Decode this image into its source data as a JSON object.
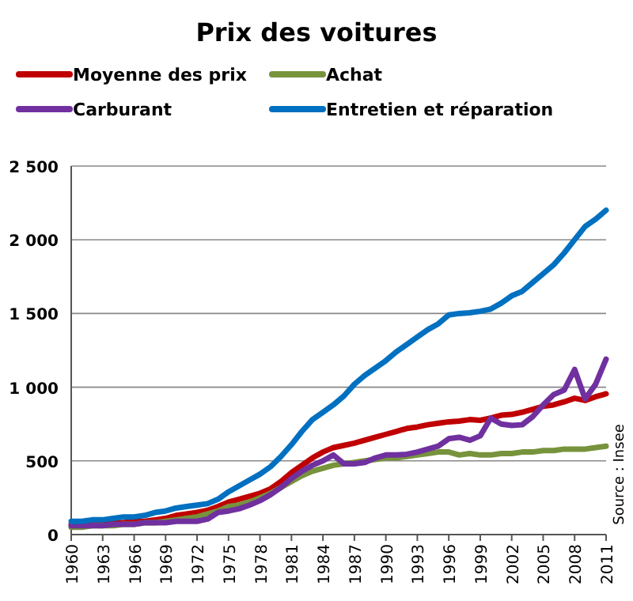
{
  "chart_data": {
    "type": "line",
    "title": "Prix des voitures",
    "annotations": [
      "Source : Insee"
    ],
    "x": [
      1960,
      1961,
      1962,
      1963,
      1964,
      1965,
      1966,
      1967,
      1968,
      1969,
      1970,
      1971,
      1972,
      1973,
      1974,
      1975,
      1976,
      1977,
      1978,
      1979,
      1980,
      1981,
      1982,
      1983,
      1984,
      1985,
      1986,
      1987,
      1988,
      1989,
      1990,
      1991,
      1992,
      1993,
      1994,
      1995,
      1996,
      1997,
      1998,
      1999,
      2000,
      2001,
      2002,
      2003,
      2004,
      2005,
      2006,
      2007,
      2008,
      2009,
      2010,
      2011
    ],
    "series": [
      {
        "name": "Moyenne des prix",
        "color": "#c00000",
        "values": [
          70,
          70,
          80,
          80,
          80,
          80,
          90,
          90,
          100,
          110,
          130,
          140,
          150,
          165,
          190,
          220,
          240,
          260,
          280,
          310,
          360,
          420,
          470,
          520,
          560,
          590,
          605,
          620,
          640,
          660,
          680,
          700,
          720,
          730,
          745,
          755,
          765,
          770,
          780,
          775,
          790,
          810,
          815,
          830,
          850,
          870,
          880,
          900,
          925,
          910,
          935,
          955
        ]
      },
      {
        "name": "Achat",
        "color": "#77933c",
        "values": [
          50,
          50,
          60,
          60,
          60,
          70,
          70,
          80,
          80,
          90,
          100,
          110,
          120,
          140,
          160,
          190,
          200,
          220,
          250,
          280,
          320,
          360,
          400,
          430,
          450,
          470,
          480,
          490,
          500,
          510,
          520,
          520,
          530,
          540,
          550,
          560,
          560,
          540,
          550,
          540,
          540,
          550,
          550,
          560,
          560,
          570,
          570,
          580,
          580,
          580,
          590,
          600
        ]
      },
      {
        "name": "Carburant",
        "color": "#7030a0",
        "values": [
          60,
          60,
          60,
          60,
          70,
          70,
          70,
          80,
          80,
          80,
          90,
          90,
          90,
          105,
          150,
          160,
          175,
          200,
          230,
          270,
          320,
          380,
          430,
          470,
          500,
          540,
          480,
          480,
          490,
          520,
          540,
          540,
          545,
          560,
          580,
          600,
          650,
          660,
          640,
          670,
          790,
          750,
          740,
          745,
          800,
          880,
          950,
          980,
          1120,
          920,
          1020,
          1190
        ]
      },
      {
        "name": "Entretien et réparation",
        "color": "#0070c0",
        "values": [
          90,
          90,
          100,
          100,
          110,
          120,
          120,
          130,
          150,
          160,
          180,
          190,
          200,
          210,
          240,
          290,
          330,
          370,
          410,
          460,
          530,
          610,
          700,
          780,
          830,
          880,
          940,
          1020,
          1080,
          1130,
          1180,
          1240,
          1290,
          1340,
          1390,
          1430,
          1490,
          1500,
          1505,
          1515,
          1530,
          1570,
          1620,
          1650,
          1710,
          1770,
          1830,
          1910,
          2000,
          2090,
          2140,
          2200
        ]
      }
    ],
    "xlim": [
      1960,
      2011
    ],
    "xticks": [
      1960,
      1963,
      1966,
      1969,
      1972,
      1975,
      1978,
      1981,
      1984,
      1987,
      1990,
      1993,
      1996,
      1999,
      2002,
      2005,
      2008,
      2011
    ],
    "ylim": [
      0,
      2500
    ],
    "yticks": [
      0,
      500,
      {
        "value": 1000,
        "label": "1 000"
      },
      {
        "value": 1500,
        "label": "1 500"
      },
      {
        "value": 2000,
        "label": "2 000"
      },
      {
        "value": 2500,
        "label": "2 500"
      }
    ],
    "grid": "y",
    "legend": "top",
    "marker": "none",
    "line_style": "solid"
  }
}
